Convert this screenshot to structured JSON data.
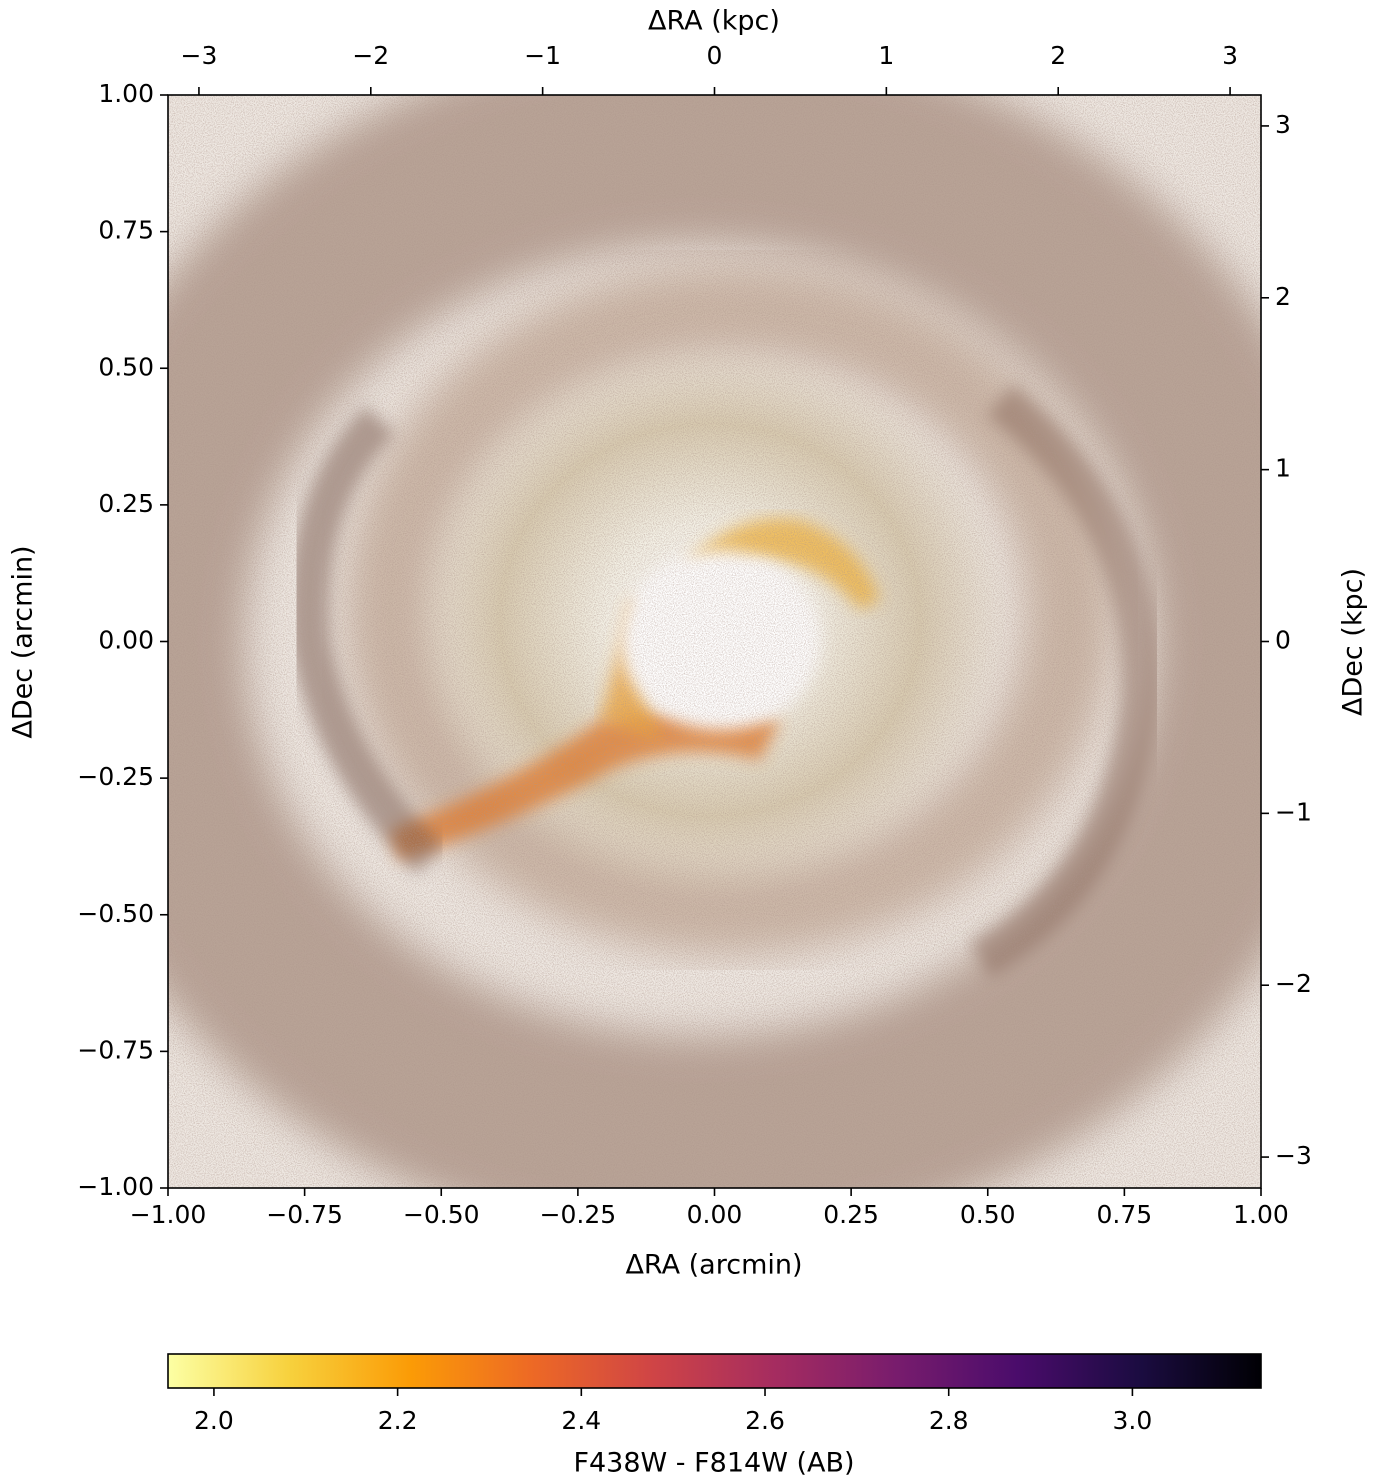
{
  "chart_data": {
    "type": "image",
    "xlabel": "ΔRA (arcmin)",
    "ylabel": "ΔDec (arcmin)",
    "x2label": "ΔRA (kpc)",
    "y2label": "ΔDec (kpc)",
    "xlim": [
      -1,
      1
    ],
    "ylim": [
      -1,
      1
    ],
    "xticks": [
      {
        "value": -1,
        "label": "−1.00"
      },
      {
        "value": -0.75,
        "label": "−0.75"
      },
      {
        "value": -0.5,
        "label": "−0.50"
      },
      {
        "value": -0.25,
        "label": "−0.25"
      },
      {
        "value": 0,
        "label": "0.00"
      },
      {
        "value": 0.25,
        "label": "0.25"
      },
      {
        "value": 0.5,
        "label": "0.50"
      },
      {
        "value": 0.75,
        "label": "0.75"
      },
      {
        "value": 1,
        "label": "1.00"
      }
    ],
    "yticks": [
      {
        "value": -1,
        "label": "−1.00"
      },
      {
        "value": -0.75,
        "label": "−0.75"
      },
      {
        "value": -0.5,
        "label": "−0.50"
      },
      {
        "value": -0.25,
        "label": "−0.25"
      },
      {
        "value": 0,
        "label": "0.00"
      },
      {
        "value": 0.25,
        "label": "0.25"
      },
      {
        "value": 0.5,
        "label": "0.50"
      },
      {
        "value": 0.75,
        "label": "0.75"
      },
      {
        "value": 1,
        "label": "1.00"
      }
    ],
    "x2lim": [
      -3.18,
      3.18
    ],
    "x2ticks": [
      {
        "value": -3,
        "label": "−3"
      },
      {
        "value": -2,
        "label": "−2"
      },
      {
        "value": -1,
        "label": "−1"
      },
      0,
      1,
      2,
      3
    ],
    "y2lim": [
      -3.18,
      3.18
    ],
    "y2ticks": [
      {
        "value": -3,
        "label": "−3"
      },
      {
        "value": -2,
        "label": "−2"
      },
      {
        "value": -1,
        "label": "−1"
      },
      0,
      1,
      2,
      3
    ],
    "colorbar": {
      "label": "F438W - F814W (AB)",
      "lim": [
        1.95,
        3.14
      ],
      "ticks": [
        {
          "value": 2,
          "label": "2.0"
        },
        {
          "value": 2.2,
          "label": "2.2"
        },
        {
          "value": 2.4,
          "label": "2.4"
        },
        {
          "value": 2.6,
          "label": "2.6"
        },
        {
          "value": 2.8,
          "label": "2.8"
        },
        {
          "value": 3,
          "label": "3.0"
        }
      ],
      "cmap": "inferno_r"
    }
  }
}
